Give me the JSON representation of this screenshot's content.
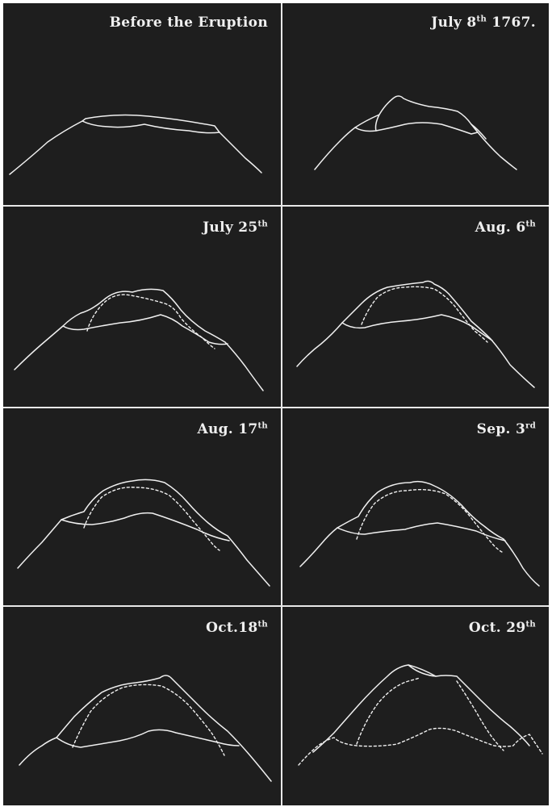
{
  "panels": [
    {
      "caption": "Before the Eruption",
      "sup": ""
    },
    {
      "caption": "July 8",
      "sup": "th",
      "suffix": " 1767."
    },
    {
      "caption": "July 25",
      "sup": "th",
      "suffix": ""
    },
    {
      "caption": "Aug. 6",
      "sup": "th",
      "suffix": ""
    },
    {
      "caption": "Aug. 17",
      "sup": "th",
      "suffix": ""
    },
    {
      "caption": "Sep. 3",
      "sup": "rd",
      "suffix": ""
    },
    {
      "caption": "Oct.18",
      "sup": "th",
      "suffix": ""
    },
    {
      "caption": "Oct. 29",
      "sup": "th",
      "suffix": ""
    }
  ]
}
